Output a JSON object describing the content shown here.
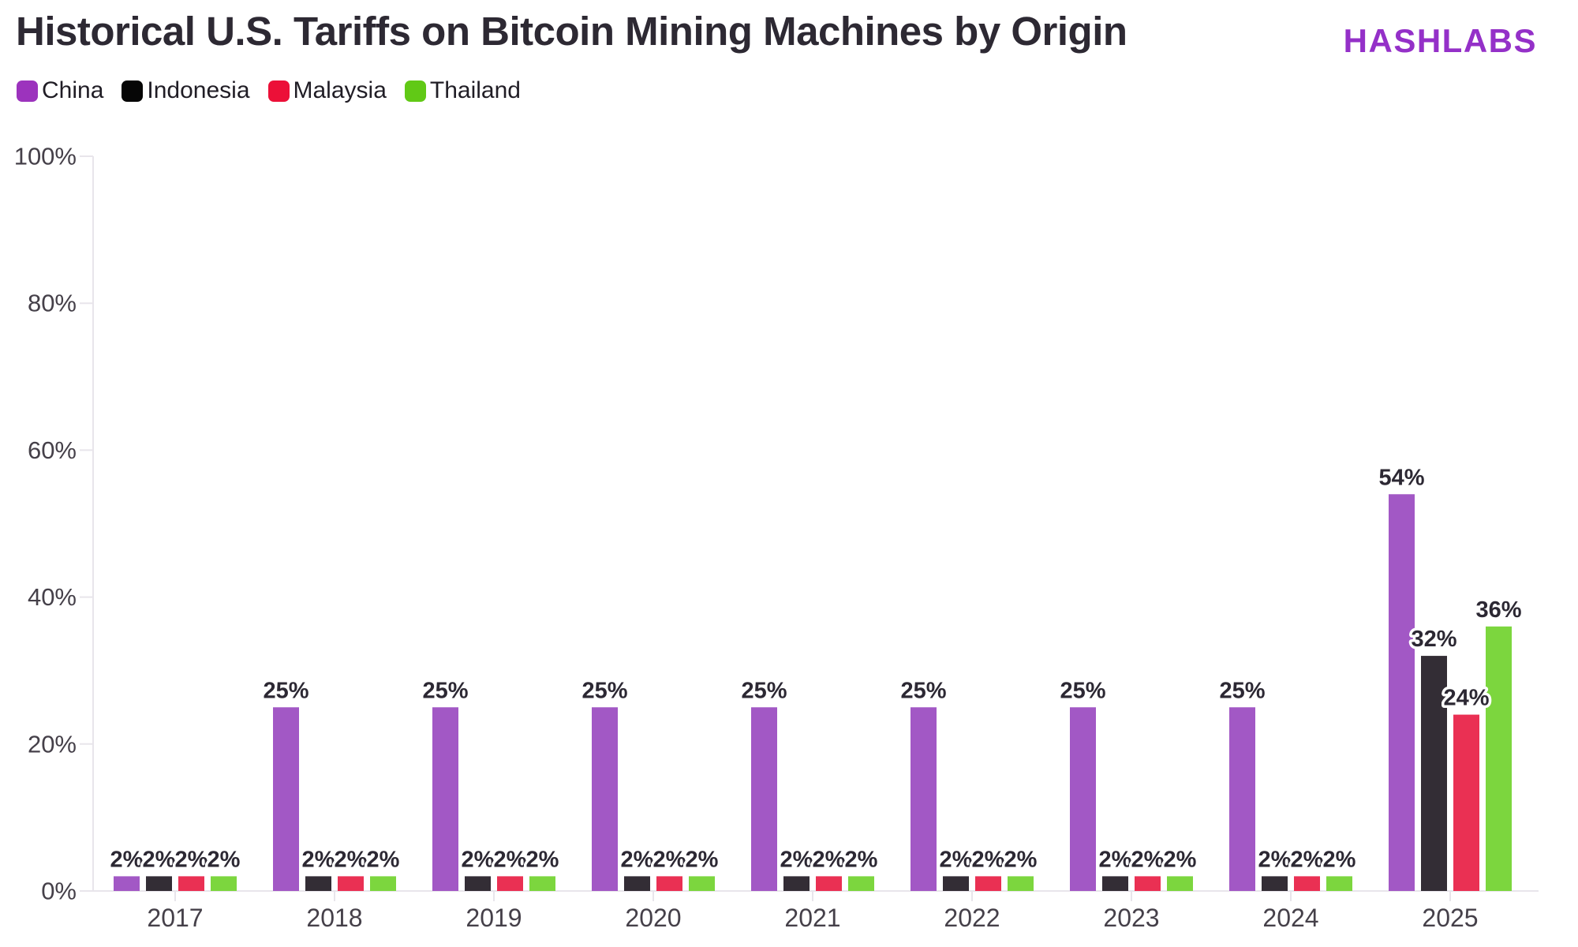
{
  "header": {
    "title": "Historical U.S. Tariffs on Bitcoin Mining Machines by Origin",
    "logo": "HASHLABS",
    "logo_color": "#9430c8"
  },
  "chart_data": {
    "type": "bar",
    "title": "Historical U.S. Tariffs on Bitcoin Mining Machines by Origin",
    "categories": [
      "2017",
      "2018",
      "2019",
      "2020",
      "2021",
      "2022",
      "2023",
      "2024",
      "2025"
    ],
    "series": [
      {
        "name": "China",
        "legend_color": "#9c33bd",
        "bar_color": "#a258c5",
        "values": [
          2,
          25,
          25,
          25,
          25,
          25,
          25,
          25,
          54
        ]
      },
      {
        "name": "Indonesia",
        "legend_color": "#060606",
        "bar_color": "#332d35",
        "values": [
          2,
          2,
          2,
          2,
          2,
          2,
          2,
          2,
          32
        ]
      },
      {
        "name": "Malaysia",
        "legend_color": "#ec1038",
        "bar_color": "#ea3053",
        "values": [
          2,
          2,
          2,
          2,
          2,
          2,
          2,
          2,
          24
        ]
      },
      {
        "name": "Thailand",
        "legend_color": "#61c916",
        "bar_color": "#7cd63e",
        "values": [
          2,
          2,
          2,
          2,
          2,
          2,
          2,
          2,
          36
        ]
      }
    ],
    "yticks": [
      0,
      20,
      40,
      60,
      80,
      100
    ],
    "ytick_labels": [
      "0%",
      "20%",
      "40%",
      "60%",
      "80%",
      "100%"
    ],
    "ylim": [
      0,
      100
    ],
    "grid": false,
    "legend_position": "top-left",
    "data_label_suffix": "%",
    "axis_line_color": "#e8e5eb",
    "tick_label_color": "#454049",
    "data_label_color": "#2c2833"
  }
}
